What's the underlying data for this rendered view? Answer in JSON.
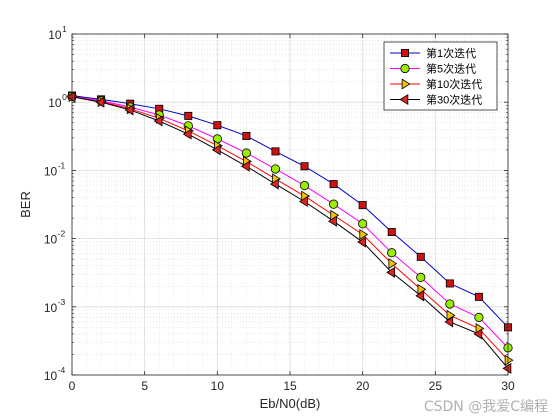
{
  "chart_data": {
    "type": "line",
    "title": "",
    "xlabel": "Eb/N0(dB)",
    "ylabel": "BER",
    "xlim": [
      0,
      30
    ],
    "ylim": [
      0.0001,
      10
    ],
    "yscale": "log",
    "grid": true,
    "legend_position": "top-right",
    "xticks": [
      "0",
      "5",
      "10",
      "15",
      "20",
      "25",
      "30"
    ],
    "yticks": [
      {
        "base": "10",
        "exp": "-4"
      },
      {
        "base": "10",
        "exp": "-3"
      },
      {
        "base": "10",
        "exp": "-2"
      },
      {
        "base": "10",
        "exp": "-1"
      },
      {
        "base": "10",
        "exp": "0"
      },
      {
        "base": "10",
        "exp": "1"
      }
    ],
    "x": [
      0,
      2,
      4,
      6,
      8,
      10,
      12,
      14,
      16,
      18,
      20,
      22,
      24,
      26,
      28,
      30
    ],
    "series": [
      {
        "name": "第1次迭代",
        "color": "#0000cc",
        "marker": "square",
        "marker_fill": "#cc1111",
        "values": [
          1.25,
          1.1,
          0.95,
          0.8,
          0.63,
          0.46,
          0.32,
          0.19,
          0.115,
          0.063,
          0.031,
          0.0125,
          0.0054,
          0.0022,
          0.0014,
          0.0005
        ]
      },
      {
        "name": "第5次迭代",
        "color": "#ff00ff",
        "marker": "circle",
        "marker_fill": "#99ee00",
        "values": [
          1.22,
          1.05,
          0.85,
          0.65,
          0.45,
          0.29,
          0.18,
          0.105,
          0.06,
          0.032,
          0.0165,
          0.0062,
          0.0027,
          0.0011,
          0.0007,
          0.00025
        ]
      },
      {
        "name": "第10次迭代",
        "color": "#ff0000",
        "marker": "triangle-right",
        "marker_fill": "#f2c200",
        "values": [
          1.21,
          1.02,
          0.8,
          0.58,
          0.38,
          0.23,
          0.135,
          0.075,
          0.042,
          0.022,
          0.0115,
          0.0043,
          0.0018,
          0.00075,
          0.00048,
          0.000165
        ]
      },
      {
        "name": "第30次迭代",
        "color": "#000000",
        "marker": "triangle-left",
        "marker_fill": "#dd2222",
        "values": [
          1.2,
          1.0,
          0.77,
          0.53,
          0.34,
          0.2,
          0.115,
          0.063,
          0.035,
          0.018,
          0.0089,
          0.0032,
          0.00145,
          0.0006,
          0.0004,
          0.000125
        ]
      }
    ]
  },
  "watermark": "CSDN @我爱C编程"
}
